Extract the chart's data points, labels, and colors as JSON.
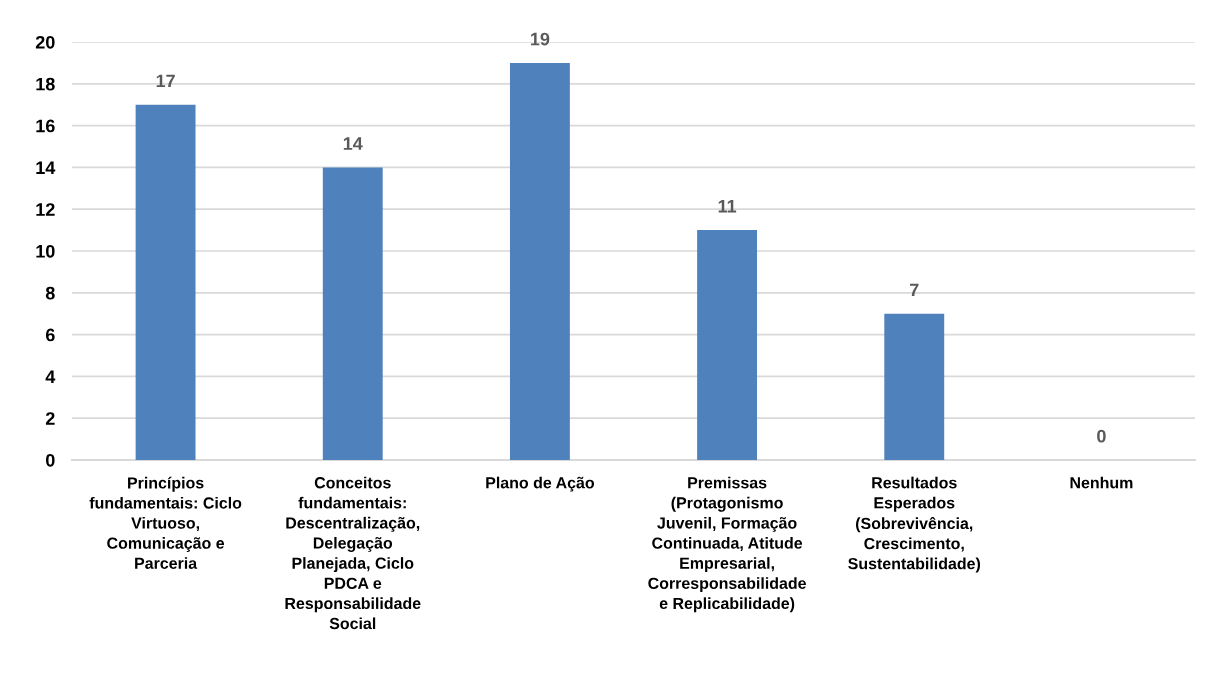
{
  "chart_data": {
    "type": "bar",
    "categories": [
      "Princípios\nfundamentais: Ciclo\nVirtuoso,\nComunicação e\nParceria",
      "Conceitos\nfundamentais:\nDescentralização,\nDelegação\nPlanejada, Ciclo\nPDCA e\nResponsabilidade\nSocial",
      "Plano de Ação",
      "Premissas\n(Protagonismo\nJuvenil, Formação\nContinuada, Atitude\nEmpresarial,\nCorresponsabilidade\ne Replicabilidade)",
      "Resultados\nEsperados\n(Sobrevivência,\nCrescimento,\nSustentabilidade)",
      "Nenhum"
    ],
    "values": [
      17,
      14,
      19,
      11,
      7,
      0
    ],
    "color": "#4f81bd",
    "ylim": [
      0,
      20
    ],
    "yticks": [
      0,
      2,
      4,
      6,
      8,
      10,
      12,
      14,
      16,
      18,
      20
    ],
    "grid": "y",
    "data_labels": true
  }
}
